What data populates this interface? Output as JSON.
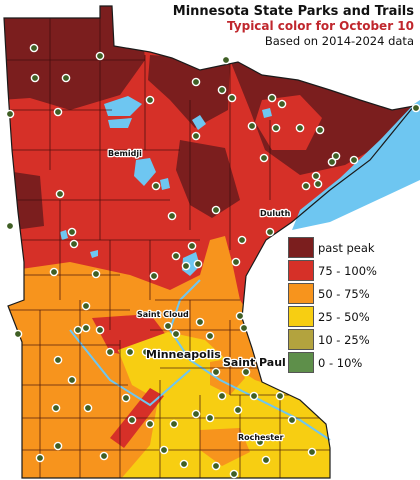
{
  "title": "Minnesota State Parks and Trails",
  "subtitle": "Typical color for October 10",
  "note": "Based on 2014-2024 data",
  "colors": {
    "subtitle": "#c0272d",
    "past_peak": "#7b1e1e",
    "c75_100": "#c0272d",
    "c50_75": "#f7941d",
    "c25_50": "#f7ce12",
    "c10_25": "#b3a33e",
    "c0_10": "#5e8f4a",
    "water": "#6ec6f1",
    "marker": "#3f5f25"
  },
  "legend": [
    {
      "label": "past peak",
      "color": "#7b1e1e"
    },
    {
      "label": "75 - 100%",
      "color": "#d63028"
    },
    {
      "label": "50 - 75%",
      "color": "#f7941d"
    },
    {
      "label": "25 - 50%",
      "color": "#f7ce12"
    },
    {
      "label": "10 - 25%",
      "color": "#b3a33e"
    },
    {
      "label": "0 - 10%",
      "color": "#5e8f4a"
    }
  ],
  "cities": {
    "bemidji": "Bemidji",
    "duluth": "Duluth",
    "saint_cloud": "Saint Cloud",
    "minneapolis": "Minneapolis",
    "saint_paul": "Saint Paul",
    "rochester": "Rochester"
  }
}
